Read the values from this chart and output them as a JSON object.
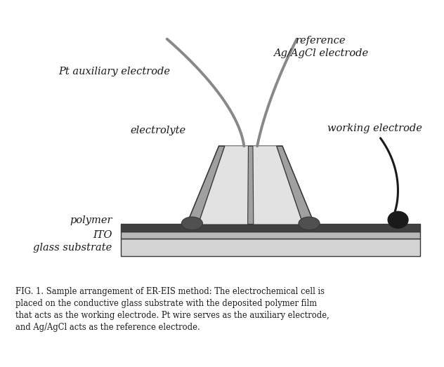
{
  "bg_color": "#ffffff",
  "fig_width": 6.32,
  "fig_height": 5.23,
  "dpi": 100,
  "text_color": "#1a1a1a",
  "gray_light": "#c8c8c8",
  "gray_medium": "#a0a0a0",
  "gray_dark": "#505050",
  "gray_darker": "#383838",
  "gray_polymer": "#404040",
  "gray_ito": "#b8b8b8",
  "gray_glass": "#d4d4d4",
  "wire_color": "#888888",
  "wire_dark": "#1a1a1a",
  "caption": "FIG. 1. Sample arrangement of ER-EIS method: The electrochemical cell is\nplaced on the conductive glass substrate with the deposited polymer film\nthat acts as the working electrode. Pt wire serves as the auxiliary electrode,\nand Ag/AgCl acts as the reference electrode.",
  "label_pt": "Pt auxiliary electrode",
  "label_ref": "reference\nAg/AgCl electrode",
  "label_electrolyte": "electrolyte",
  "label_working": "working electrode",
  "label_polymer": "polymer",
  "label_ito": "ITO",
  "label_glass": "glass substrate"
}
